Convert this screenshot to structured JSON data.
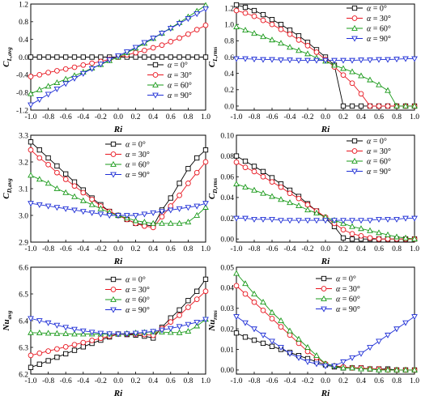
{
  "chart_data": [
    {
      "type": "line",
      "ylabel": "C_L,avg",
      "xlabel": "Ri",
      "xlim": [
        -1.0,
        1.0
      ],
      "ylim": [
        -1.2,
        1.2
      ],
      "xticks": [
        "-1.0",
        "-0.8",
        "-0.6",
        "-0.4",
        "-0.2",
        "0.0",
        "0.2",
        "0.4",
        "0.6",
        "0.8",
        "1.0"
      ],
      "yticks": [
        "-1.2",
        "-0.8",
        "-0.4",
        "0.0",
        "0.4",
        "0.8",
        "1.2"
      ],
      "ytick_values": [
        -1.2,
        -0.8,
        -0.4,
        0.0,
        0.4,
        0.8,
        1.2
      ],
      "legend_position": "lower-right",
      "x": [
        -1.0,
        -0.9,
        -0.8,
        -0.7,
        -0.6,
        -0.5,
        -0.4,
        -0.3,
        -0.2,
        -0.1,
        0.0,
        0.1,
        0.2,
        0.3,
        0.4,
        0.5,
        0.6,
        0.7,
        0.8,
        0.9,
        1.0
      ],
      "series": [
        {
          "name": "α = 0°",
          "marker": "square",
          "color": "#000000",
          "values": [
            0,
            0,
            0,
            0,
            0,
            0,
            0,
            0,
            0,
            0,
            0,
            0,
            0,
            0,
            0,
            0,
            0,
            0,
            0,
            0,
            0
          ]
        },
        {
          "name": "α = 30°",
          "marker": "circle",
          "color": "#e8141e",
          "values": [
            -0.44,
            -0.4,
            -0.35,
            -0.31,
            -0.27,
            -0.23,
            -0.18,
            -0.14,
            -0.1,
            -0.05,
            0.0,
            0.05,
            0.1,
            0.15,
            0.21,
            0.27,
            0.35,
            0.43,
            0.52,
            0.62,
            0.72
          ]
        },
        {
          "name": "α = 60°",
          "marker": "triangle-up",
          "color": "#1a9a1a",
          "values": [
            -0.83,
            -0.74,
            -0.66,
            -0.58,
            -0.5,
            -0.42,
            -0.34,
            -0.25,
            -0.17,
            -0.08,
            0.0,
            0.1,
            0.2,
            0.31,
            0.42,
            0.54,
            0.66,
            0.78,
            0.91,
            1.04,
            1.17
          ]
        },
        {
          "name": "α = 90°",
          "marker": "triangle-down",
          "color": "#1f2fd6",
          "values": [
            -1.08,
            -0.96,
            -0.84,
            -0.72,
            -0.6,
            -0.48,
            -0.37,
            -0.26,
            -0.16,
            -0.06,
            0.03,
            0.12,
            0.22,
            0.33,
            0.43,
            0.54,
            0.65,
            0.76,
            0.87,
            0.98,
            1.09
          ]
        }
      ]
    },
    {
      "type": "line",
      "ylabel": "C_L,rms",
      "xlabel": "Ri",
      "xlim": [
        -1.0,
        1.0
      ],
      "ylim": [
        -0.05,
        1.25
      ],
      "xticks": [
        "-1.0",
        "-0.8",
        "-0.6",
        "-0.4",
        "-0.2",
        "0.0",
        "0.2",
        "0.4",
        "0.6",
        "0.8",
        "1.0"
      ],
      "yticks": [
        "0.0",
        "0.2",
        "0.4",
        "0.6",
        "0.8",
        "1.0",
        "1.2"
      ],
      "ytick_values": [
        0.0,
        0.2,
        0.4,
        0.6,
        0.8,
        1.0,
        1.2
      ],
      "legend_position": "top-right",
      "x": [
        -1.0,
        -0.9,
        -0.8,
        -0.7,
        -0.6,
        -0.5,
        -0.4,
        -0.3,
        -0.2,
        -0.1,
        0.0,
        0.1,
        0.2,
        0.3,
        0.4,
        0.5,
        0.6,
        0.7,
        0.8,
        0.9,
        1.0
      ],
      "series": [
        {
          "name": "α = 0°",
          "marker": "square",
          "color": "#000000",
          "values": [
            1.24,
            1.21,
            1.17,
            1.12,
            1.06,
            1.0,
            0.93,
            0.86,
            0.78,
            0.69,
            0.6,
            0.5,
            0.0,
            0.0,
            0.0,
            0.0,
            0.0,
            0.0,
            0.0,
            0.0,
            0.0
          ]
        },
        {
          "name": "α = 30°",
          "marker": "circle",
          "color": "#e8141e",
          "values": [
            1.17,
            1.14,
            1.1,
            1.05,
            1.0,
            0.94,
            0.88,
            0.81,
            0.74,
            0.66,
            0.57,
            0.48,
            0.38,
            0.28,
            0.15,
            0.0,
            0.0,
            0.0,
            0.0,
            0.0,
            0.0
          ]
        },
        {
          "name": "α = 60°",
          "marker": "triangle-up",
          "color": "#1a9a1a",
          "values": [
            0.97,
            0.93,
            0.89,
            0.85,
            0.81,
            0.77,
            0.72,
            0.68,
            0.64,
            0.59,
            0.55,
            0.5,
            0.46,
            0.42,
            0.37,
            0.32,
            0.26,
            0.19,
            0.0,
            0.0,
            0.0
          ]
        },
        {
          "name": "α = 90°",
          "marker": "triangle-down",
          "color": "#1f2fd6",
          "values": [
            0.58,
            0.58,
            0.575,
            0.57,
            0.57,
            0.565,
            0.565,
            0.56,
            0.56,
            0.56,
            0.56,
            0.56,
            0.56,
            0.56,
            0.565,
            0.565,
            0.57,
            0.57,
            0.575,
            0.58,
            0.58
          ]
        }
      ]
    },
    {
      "type": "line",
      "ylabel": "C_D,avg",
      "xlabel": "Ri",
      "xlim": [
        -1.0,
        1.0
      ],
      "ylim": [
        2.9,
        3.3
      ],
      "xticks": [
        "-1.0",
        "-0.8",
        "-0.6",
        "-0.4",
        "-0.2",
        "0.0",
        "0.2",
        "0.4",
        "0.6",
        "0.8",
        "1.0"
      ],
      "yticks": [
        "2.9",
        "3.0",
        "3.1",
        "3.2",
        "3.3"
      ],
      "ytick_values": [
        2.9,
        3.0,
        3.1,
        3.2,
        3.3
      ],
      "legend_position": "top-center",
      "x": [
        -1.0,
        -0.9,
        -0.8,
        -0.7,
        -0.6,
        -0.5,
        -0.4,
        -0.3,
        -0.2,
        -0.1,
        0.0,
        0.1,
        0.2,
        0.3,
        0.4,
        0.5,
        0.6,
        0.7,
        0.8,
        0.9,
        1.0
      ],
      "series": [
        {
          "name": "α = 0°",
          "marker": "square",
          "color": "#000000",
          "values": [
            3.275,
            3.245,
            3.215,
            3.185,
            3.155,
            3.125,
            3.095,
            3.065,
            3.04,
            3.015,
            3.0,
            2.985,
            2.97,
            2.965,
            2.96,
            3.02,
            3.065,
            3.12,
            3.175,
            3.215,
            3.245
          ]
        },
        {
          "name": "α = 30°",
          "marker": "circle",
          "color": "#e8141e",
          "values": [
            3.245,
            3.215,
            3.19,
            3.16,
            3.135,
            3.11,
            3.085,
            3.06,
            3.035,
            3.015,
            3.0,
            2.985,
            2.97,
            2.96,
            2.955,
            2.995,
            3.035,
            3.075,
            3.12,
            3.16,
            3.2
          ]
        },
        {
          "name": "α = 60°",
          "marker": "triangle-up",
          "color": "#1a9a1a",
          "values": [
            3.15,
            3.135,
            3.12,
            3.1,
            3.085,
            3.07,
            3.055,
            3.04,
            3.025,
            3.01,
            3.0,
            2.99,
            2.98,
            2.975,
            2.97,
            2.97,
            2.97,
            2.97,
            2.975,
            3.0,
            3.03
          ]
        },
        {
          "name": "α = 90°",
          "marker": "triangle-down",
          "color": "#1f2fd6",
          "values": [
            3.045,
            3.04,
            3.035,
            3.03,
            3.025,
            3.02,
            3.015,
            3.01,
            3.005,
            3.0,
            3.0,
            3.0,
            3.0,
            3.005,
            3.01,
            3.015,
            3.02,
            3.025,
            3.03,
            3.035,
            3.045
          ]
        }
      ]
    },
    {
      "type": "line",
      "ylabel": "C_D,rms",
      "xlabel": "Ri",
      "xlim": [
        -1.0,
        1.0
      ],
      "ylim": [
        -0.003,
        0.1
      ],
      "xticks": [
        "-1.0",
        "-0.8",
        "-0.6",
        "-0.4",
        "-0.2",
        "0.0",
        "0.2",
        "0.4",
        "0.6",
        "0.8",
        "1.0"
      ],
      "yticks": [
        "0.00",
        "0.02",
        "0.04",
        "0.06",
        "0.08",
        "0.10"
      ],
      "ytick_values": [
        0.0,
        0.02,
        0.04,
        0.06,
        0.08,
        0.1
      ],
      "legend_position": "top-right",
      "x": [
        -1.0,
        -0.9,
        -0.8,
        -0.7,
        -0.6,
        -0.5,
        -0.4,
        -0.3,
        -0.2,
        -0.1,
        0.0,
        0.1,
        0.2,
        0.3,
        0.4,
        0.5,
        0.6,
        0.7,
        0.8,
        0.9,
        1.0
      ],
      "series": [
        {
          "name": "α = 0°",
          "marker": "square",
          "color": "#000000",
          "values": [
            0.08,
            0.075,
            0.07,
            0.065,
            0.059,
            0.053,
            0.047,
            0.041,
            0.034,
            0.027,
            0.02,
            0.012,
            0.001,
            0.0,
            0.0,
            0.0,
            0.0,
            0.0,
            0.0,
            0.0,
            0.0
          ]
        },
        {
          "name": "α = 30°",
          "marker": "circle",
          "color": "#e8141e",
          "values": [
            0.074,
            0.069,
            0.065,
            0.06,
            0.055,
            0.05,
            0.044,
            0.039,
            0.033,
            0.027,
            0.021,
            0.015,
            0.009,
            0.005,
            0.003,
            0.001,
            0.0,
            0.0,
            0.0,
            0.0,
            0.0
          ]
        },
        {
          "name": "α = 60°",
          "marker": "triangle-up",
          "color": "#1a9a1a",
          "values": [
            0.053,
            0.05,
            0.047,
            0.044,
            0.041,
            0.038,
            0.035,
            0.032,
            0.028,
            0.025,
            0.021,
            0.018,
            0.015,
            0.012,
            0.01,
            0.008,
            0.006,
            0.004,
            0.002,
            0.001,
            0.0
          ]
        },
        {
          "name": "α = 90°",
          "marker": "triangle-down",
          "color": "#1f2fd6",
          "values": [
            0.02,
            0.02,
            0.019,
            0.019,
            0.019,
            0.018,
            0.018,
            0.018,
            0.018,
            0.018,
            0.018,
            0.018,
            0.018,
            0.018,
            0.018,
            0.018,
            0.019,
            0.019,
            0.019,
            0.02,
            0.02
          ]
        }
      ]
    },
    {
      "type": "line",
      "ylabel": "Nu_avg",
      "xlabel": "Ri",
      "xlim": [
        -1.0,
        1.0
      ],
      "ylim": [
        6.2,
        6.6
      ],
      "xticks": [
        "-1.0",
        "-0.8",
        "-0.6",
        "-0.4",
        "-0.2",
        "0.0",
        "0.2",
        "0.4",
        "0.6",
        "0.8",
        "1.0"
      ],
      "yticks": [
        "6.2",
        "6.3",
        "6.4",
        "6.5",
        "6.6"
      ],
      "ytick_values": [
        6.2,
        6.3,
        6.4,
        6.5,
        6.6
      ],
      "legend_position": "top-center",
      "x": [
        -1.0,
        -0.9,
        -0.8,
        -0.7,
        -0.6,
        -0.5,
        -0.4,
        -0.3,
        -0.2,
        -0.1,
        0.0,
        0.1,
        0.2,
        0.3,
        0.4,
        0.5,
        0.6,
        0.7,
        0.8,
        0.9,
        1.0
      ],
      "series": [
        {
          "name": "α = 0°",
          "marker": "square",
          "color": "#000000",
          "values": [
            6.225,
            6.237,
            6.25,
            6.263,
            6.276,
            6.289,
            6.302,
            6.315,
            6.327,
            6.339,
            6.35,
            6.348,
            6.346,
            6.342,
            6.335,
            6.375,
            6.41,
            6.44,
            6.475,
            6.51,
            6.555
          ]
        },
        {
          "name": "α = 30°",
          "marker": "circle",
          "color": "#e8141e",
          "values": [
            6.27,
            6.278,
            6.286,
            6.294,
            6.302,
            6.31,
            6.318,
            6.326,
            6.334,
            6.342,
            6.35,
            6.35,
            6.35,
            6.348,
            6.345,
            6.37,
            6.395,
            6.42,
            6.45,
            6.48,
            6.51
          ]
        },
        {
          "name": "α = 60°",
          "marker": "triangle-up",
          "color": "#1a9a1a",
          "values": [
            6.355,
            6.354,
            6.353,
            6.352,
            6.351,
            6.35,
            6.35,
            6.35,
            6.35,
            6.35,
            6.35,
            6.352,
            6.354,
            6.356,
            6.358,
            6.357,
            6.356,
            6.355,
            6.36,
            6.38,
            6.405
          ]
        },
        {
          "name": "α = 90°",
          "marker": "triangle-down",
          "color": "#1f2fd6",
          "values": [
            6.408,
            6.4,
            6.392,
            6.383,
            6.375,
            6.368,
            6.362,
            6.357,
            6.353,
            6.351,
            6.35,
            6.351,
            6.353,
            6.356,
            6.36,
            6.365,
            6.371,
            6.378,
            6.386,
            6.394,
            6.405
          ]
        }
      ]
    },
    {
      "type": "line",
      "ylabel": "Nu_rms",
      "xlabel": "Ri",
      "xlim": [
        -1.0,
        1.0
      ],
      "ylim": [
        -0.002,
        0.05
      ],
      "xticks": [
        "-1.0",
        "-0.8",
        "-0.6",
        "-0.4",
        "-0.2",
        "0.0",
        "0.2",
        "0.4",
        "0.6",
        "0.8",
        "1.0"
      ],
      "yticks": [
        "0.00",
        "0.01",
        "0.02",
        "0.03",
        "0.04",
        "0.05"
      ],
      "ytick_values": [
        0.0,
        0.01,
        0.02,
        0.03,
        0.04,
        0.05
      ],
      "legend_position": "top-center",
      "x": [
        -1.0,
        -0.9,
        -0.8,
        -0.7,
        -0.6,
        -0.5,
        -0.4,
        -0.3,
        -0.2,
        -0.1,
        0.0,
        0.1,
        0.2,
        0.3,
        0.4,
        0.5,
        0.6,
        0.7,
        0.8,
        0.9,
        1.0
      ],
      "series": [
        {
          "name": "α = 0°",
          "marker": "square",
          "color": "#000000",
          "values": [
            0.018,
            0.016,
            0.0145,
            0.013,
            0.0115,
            0.01,
            0.0085,
            0.007,
            0.0055,
            0.004,
            0.0025,
            0.0015,
            0.001,
            0.001,
            0.001,
            0.0005,
            0.0005,
            0.0005,
            0.0,
            0.0,
            0.0
          ]
        },
        {
          "name": "α = 30°",
          "marker": "circle",
          "color": "#e8141e",
          "values": [
            0.041,
            0.037,
            0.033,
            0.029,
            0.025,
            0.021,
            0.017,
            0.013,
            0.009,
            0.006,
            0.003,
            0.002,
            0.0015,
            0.001,
            0.001,
            0.0005,
            0.0005,
            0.0,
            0.0,
            0.0,
            0.0
          ]
        },
        {
          "name": "α = 60°",
          "marker": "triangle-up",
          "color": "#1a9a1a",
          "values": [
            0.047,
            0.042,
            0.037,
            0.033,
            0.028,
            0.024,
            0.019,
            0.015,
            0.011,
            0.007,
            0.003,
            0.002,
            0.001,
            0.001,
            0.0005,
            0.0005,
            0.0,
            0.0,
            0.0,
            0.0,
            0.0
          ]
        },
        {
          "name": "α = 90°",
          "marker": "triangle-down",
          "color": "#1f2fd6",
          "values": [
            0.026,
            0.023,
            0.02,
            0.017,
            0.014,
            0.011,
            0.008,
            0.006,
            0.004,
            0.003,
            0.002,
            0.002,
            0.004,
            0.006,
            0.008,
            0.011,
            0.014,
            0.017,
            0.02,
            0.023,
            0.026
          ]
        }
      ]
    }
  ]
}
